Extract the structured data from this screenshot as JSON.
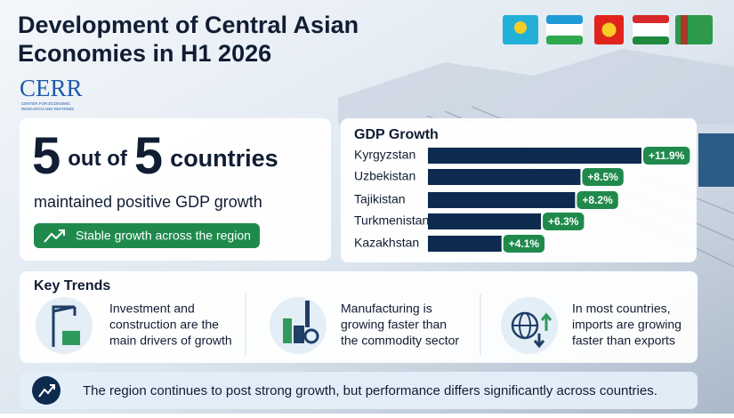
{
  "header": {
    "title_lines": [
      "Development of Central Asian",
      "Economies in H1 2026"
    ],
    "logo": "CERR",
    "logo_sub_lines": [
      "CENTER FOR ECONOMIC",
      "RESEARCH AND REFORMS"
    ]
  },
  "summary": {
    "count_a": "5",
    "text_a": "out of",
    "count_b": "5",
    "text_b": "countries",
    "subtitle": "maintained positive GDP growth",
    "badge": "Stable growth across the region"
  },
  "chart_data": {
    "type": "bar",
    "title": "GDP Growth",
    "categories": [
      "Kyrgyzstan",
      "Uzbekistan",
      "Tajikistan",
      "Turkmenistan",
      "Kazakhstan"
    ],
    "values": [
      11.9,
      8.5,
      8.2,
      6.3,
      4.1
    ],
    "value_labels": [
      "+11.9%",
      "+8.5%",
      "+8.2%",
      "+6.3%",
      "+4.1%"
    ],
    "color": "#0d2b4e",
    "label_color": "#1f8a4c"
  },
  "trends": {
    "title": "Key Trends",
    "items": [
      {
        "lines": [
          "Investment and",
          "construction are the",
          "main drivers of growth"
        ]
      },
      {
        "lines": [
          "Manufacturing is",
          "growing faster than",
          "the commodity sector"
        ]
      },
      {
        "lines": [
          "In most countries,",
          "imports are growing",
          "faster than exports"
        ]
      }
    ]
  },
  "footer": {
    "text": "The region continues to post strong growth, but performance differs significantly across countries."
  }
}
